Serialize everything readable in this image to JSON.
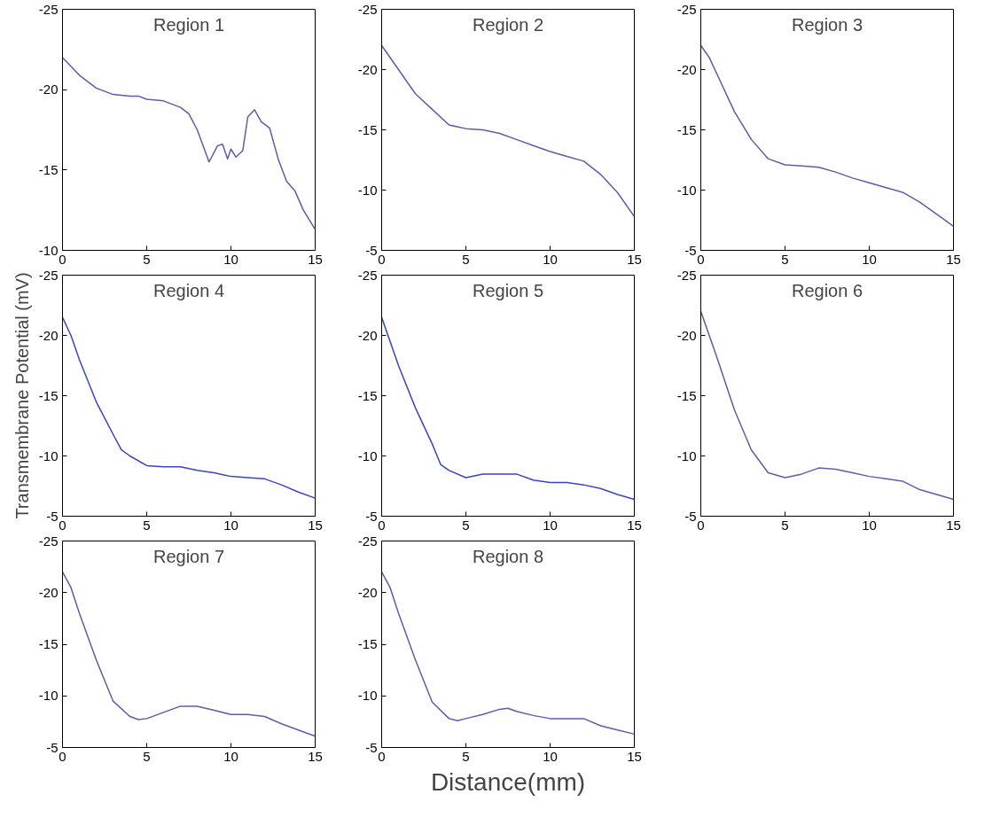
{
  "chart_data": [
    {
      "type": "line",
      "title": "Region 1",
      "x": [
        0,
        1,
        1.5,
        2,
        3,
        4,
        4.5,
        5,
        6,
        7,
        7.5,
        8,
        8.7,
        9.2,
        9.5,
        9.8,
        10,
        10.3,
        10.7,
        11,
        11.4,
        11.8,
        12.3,
        12.8,
        13.3,
        13.8,
        14.3,
        15
      ],
      "series": [
        {
          "color": "#5a5fa8",
          "values": [
            -22,
            -20.9,
            -20.5,
            -20.1,
            -19.7,
            -19.6,
            -19.6,
            -19.4,
            -19.3,
            -18.9,
            -18.5,
            -17.5,
            -15.5,
            -16.5,
            -16.6,
            -15.7,
            -16.3,
            -15.8,
            -16.2,
            -18.3,
            -18.75,
            -18,
            -17.6,
            -15.7,
            -14.3,
            -13.7,
            -12.5,
            -11.3
          ]
        }
      ],
      "xlim": [
        0,
        15
      ],
      "xticks": [
        0,
        5,
        10,
        15
      ],
      "ylim": [
        -10,
        -25
      ],
      "yticks": [
        -25,
        -20,
        -15,
        -10
      ],
      "grid": false
    },
    {
      "type": "line",
      "title": "Region 2",
      "x": [
        0,
        1,
        2,
        3,
        4,
        5,
        6,
        7,
        8,
        9,
        10,
        11,
        12,
        13,
        14,
        15
      ],
      "series": [
        {
          "color": "#5a5fa8",
          "values": [
            -22,
            -20,
            -18,
            -16.7,
            -15.4,
            -15.1,
            -15,
            -14.7,
            -14.2,
            -13.7,
            -13.2,
            -12.8,
            -12.4,
            -11.3,
            -9.8,
            -7.8
          ]
        }
      ],
      "xlim": [
        0,
        15
      ],
      "xticks": [
        0,
        5,
        10,
        15
      ],
      "ylim": [
        -5,
        -25
      ],
      "yticks": [
        -25,
        -20,
        -15,
        -10,
        -5
      ],
      "grid": false
    },
    {
      "type": "line",
      "title": "Region 3",
      "x": [
        0,
        0.5,
        1,
        2,
        3,
        4,
        5,
        6,
        7,
        8,
        9,
        10,
        11,
        12,
        13,
        14,
        15
      ],
      "series": [
        {
          "color": "#5a5fa8",
          "values": [
            -22,
            -21,
            -19.5,
            -16.5,
            -14.2,
            -12.6,
            -12.1,
            -12,
            -11.9,
            -11.5,
            -11,
            -10.6,
            -10.2,
            -9.8,
            -9,
            -8,
            -7
          ]
        }
      ],
      "xlim": [
        0,
        15
      ],
      "xticks": [
        0,
        5,
        10,
        15
      ],
      "ylim": [
        -5,
        -25
      ],
      "yticks": [
        -25,
        -20,
        -15,
        -10,
        -5
      ],
      "grid": false
    },
    {
      "type": "line",
      "title": "Region 4",
      "ylabel": "Transmembrane Potential (mV)",
      "x": [
        0,
        0.5,
        1,
        2,
        3,
        3.5,
        4,
        5,
        6,
        7,
        8,
        9,
        10,
        11,
        12,
        13,
        14,
        15
      ],
      "series": [
        {
          "color": "#3a44c8",
          "values": [
            -21.5,
            -20,
            -18,
            -14.5,
            -11.8,
            -10.5,
            -10,
            -9.2,
            -9.1,
            -9.1,
            -8.8,
            -8.6,
            -8.3,
            -8.2,
            -8.1,
            -7.6,
            -7,
            -6.5
          ]
        }
      ],
      "xlim": [
        0,
        15
      ],
      "xticks": [
        0,
        5,
        10,
        15
      ],
      "ylim": [
        -5,
        -25
      ],
      "yticks": [
        -25,
        -20,
        -15,
        -10,
        -5
      ],
      "grid": false
    },
    {
      "type": "line",
      "title": "Region 5",
      "x": [
        0,
        1,
        2,
        3,
        3.5,
        4,
        5,
        6,
        7,
        8,
        9,
        10,
        11,
        12,
        13,
        14,
        15
      ],
      "series": [
        {
          "color": "#3a44c8",
          "values": [
            -21.5,
            -17.5,
            -14,
            -11,
            -9.3,
            -8.8,
            -8.2,
            -8.5,
            -8.5,
            -8.5,
            -8,
            -7.8,
            -7.8,
            -7.6,
            -7.3,
            -6.8,
            -6.4
          ]
        }
      ],
      "xlim": [
        0,
        15
      ],
      "xticks": [
        0,
        5,
        10,
        15
      ],
      "ylim": [
        -5,
        -25
      ],
      "yticks": [
        -25,
        -20,
        -15,
        -10,
        -5
      ],
      "grid": false
    },
    {
      "type": "line",
      "title": "Region 6",
      "x": [
        0,
        1,
        2,
        3,
        4,
        5,
        6,
        7,
        8,
        9,
        10,
        11,
        12,
        13,
        14,
        15
      ],
      "series": [
        {
          "color": "#5a5fa8",
          "values": [
            -22,
            -18,
            -13.8,
            -10.5,
            -8.6,
            -8.2,
            -8.5,
            -9,
            -8.9,
            -8.6,
            -8.3,
            -8.1,
            -7.9,
            -7.2,
            -6.8,
            -6.4
          ]
        }
      ],
      "xlim": [
        0,
        15
      ],
      "xticks": [
        0,
        5,
        10,
        15
      ],
      "ylim": [
        -5,
        -25
      ],
      "yticks": [
        -25,
        -20,
        -15,
        -10,
        -5
      ],
      "grid": false
    },
    {
      "type": "line",
      "title": "Region 7",
      "x": [
        0,
        0.5,
        1,
        2,
        3,
        4,
        4.5,
        5,
        6,
        7,
        8,
        9,
        10,
        11,
        12,
        13,
        14,
        15
      ],
      "series": [
        {
          "color": "#5a5fa8",
          "values": [
            -22,
            -20.5,
            -18,
            -13.5,
            -9.5,
            -8,
            -7.7,
            -7.8,
            -8.4,
            -9,
            -9,
            -8.6,
            -8.2,
            -8.2,
            -8,
            -7.3,
            -6.7,
            -6.1
          ]
        }
      ],
      "xlim": [
        0,
        15
      ],
      "xticks": [
        0,
        5,
        10,
        15
      ],
      "ylim": [
        -5,
        -25
      ],
      "yticks": [
        -25,
        -20,
        -15,
        -10,
        -5
      ],
      "grid": false
    },
    {
      "type": "line",
      "title": "Region 8",
      "xlabel": "Distance(mm)",
      "x": [
        0,
        0.5,
        1,
        2,
        3,
        4,
        4.5,
        5,
        6,
        7,
        7.5,
        8,
        9,
        10,
        11,
        12,
        13,
        14,
        15
      ],
      "series": [
        {
          "color": "#5a5fa8",
          "values": [
            -22,
            -20.5,
            -18,
            -13.5,
            -9.4,
            -7.8,
            -7.6,
            -7.8,
            -8.2,
            -8.7,
            -8.8,
            -8.5,
            -8.1,
            -7.8,
            -7.8,
            -7.8,
            -7.1,
            -6.7,
            -6.3
          ]
        }
      ],
      "xlim": [
        0,
        15
      ],
      "xticks": [
        0,
        5,
        10,
        15
      ],
      "ylim": [
        -5,
        -25
      ],
      "yticks": [
        -25,
        -20,
        -15,
        -10,
        -5
      ],
      "grid": false
    }
  ]
}
